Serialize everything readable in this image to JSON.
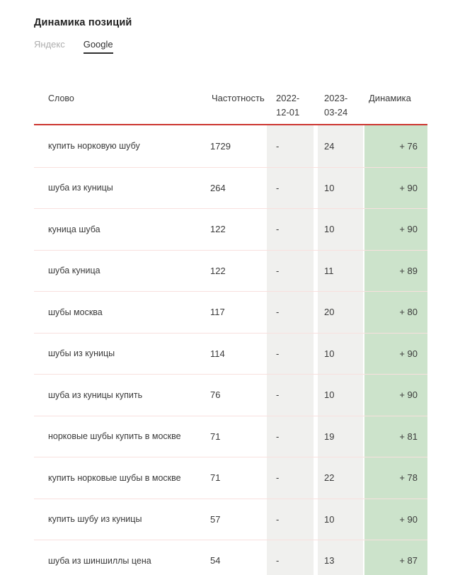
{
  "page": {
    "title": "Динамика позиций"
  },
  "tabs": [
    {
      "label": "Яндекс",
      "active": false
    },
    {
      "label": "Google",
      "active": true
    }
  ],
  "table": {
    "columns": {
      "word": "Слово",
      "frequency": "Частотность",
      "date1": "2022-\n12-01",
      "date2": "2023-\n03-24",
      "dynamics": "Динамика"
    },
    "rows": [
      {
        "word": "купить норковую шубу",
        "frequency": "1729",
        "date1": "-",
        "date2": "24",
        "dynamics": "+ 76"
      },
      {
        "word": "шуба из куницы",
        "frequency": "264",
        "date1": "-",
        "date2": "10",
        "dynamics": "+ 90"
      },
      {
        "word": "куница шуба",
        "frequency": "122",
        "date1": "-",
        "date2": "10",
        "dynamics": "+ 90"
      },
      {
        "word": "шуба куница",
        "frequency": "122",
        "date1": "-",
        "date2": "11",
        "dynamics": "+ 89"
      },
      {
        "word": "шубы москва",
        "frequency": "117",
        "date1": "-",
        "date2": "20",
        "dynamics": "+ 80"
      },
      {
        "word": "шубы из куницы",
        "frequency": "114",
        "date1": "-",
        "date2": "10",
        "dynamics": "+ 90"
      },
      {
        "word": "шуба из куницы купить",
        "frequency": "76",
        "date1": "-",
        "date2": "10",
        "dynamics": "+ 90"
      },
      {
        "word": "норковые шубы купить в москве",
        "frequency": "71",
        "date1": "-",
        "date2": "19",
        "dynamics": "+ 81"
      },
      {
        "word": "купить норковые шубы в москве",
        "frequency": "71",
        "date1": "-",
        "date2": "22",
        "dynamics": "+ 78"
      },
      {
        "word": "купить шубу из куницы",
        "frequency": "57",
        "date1": "-",
        "date2": "10",
        "dynamics": "+ 90"
      },
      {
        "word": "шуба из шиншиллы цена",
        "frequency": "54",
        "date1": "-",
        "date2": "13",
        "dynamics": "+ 87"
      }
    ]
  },
  "colors": {
    "accent_red": "#cc3530",
    "band_gray": "#f0f0ee",
    "band_green": "#cce3cb",
    "separator_pink": "#f8e0de",
    "text_dark": "#3a3a3a",
    "text_header_gray": "#8d8d8d",
    "tab_inactive_gray": "#aeaeae"
  }
}
